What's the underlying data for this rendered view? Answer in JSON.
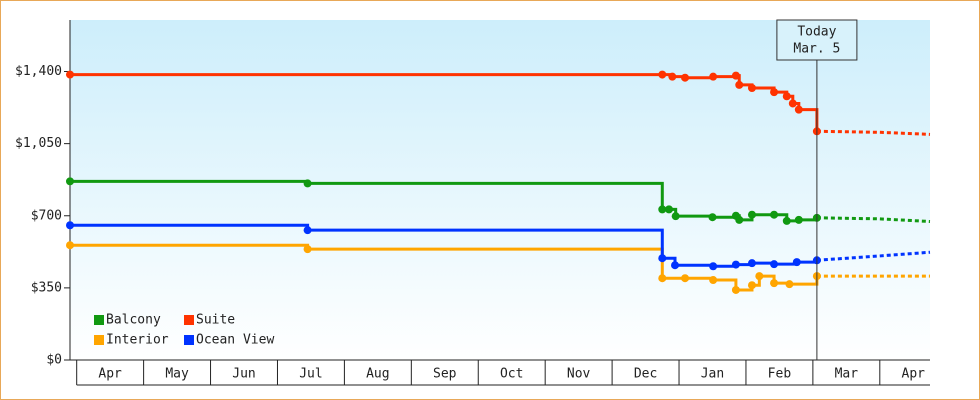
{
  "chart_data": {
    "type": "step-line",
    "xlim": [
      -0.1,
      12.75
    ],
    "xticks": [
      {
        "value": 0.5,
        "label": "Apr"
      },
      {
        "value": 1.5,
        "label": "May"
      },
      {
        "value": 2.5,
        "label": "Jun"
      },
      {
        "value": 3.5,
        "label": "Jul"
      },
      {
        "value": 4.5,
        "label": "Aug"
      },
      {
        "value": 5.5,
        "label": "Sep"
      },
      {
        "value": 6.5,
        "label": "Oct"
      },
      {
        "value": 7.5,
        "label": "Nov"
      },
      {
        "value": 8.5,
        "label": "Dec"
      },
      {
        "value": 9.5,
        "label": "Jan"
      },
      {
        "value": 10.5,
        "label": "Feb"
      },
      {
        "value": 11.5,
        "label": "Mar"
      },
      {
        "value": 12.5,
        "label": "Apr"
      }
    ],
    "ylim": [
      0,
      1650
    ],
    "yticks": [
      {
        "value": 0,
        "label": "$0"
      },
      {
        "value": 350,
        "label": "$350"
      },
      {
        "value": 700,
        "label": "$700"
      },
      {
        "value": 1050,
        "label": "$1,050"
      },
      {
        "value": 1400,
        "label": "$1,400"
      }
    ],
    "annotation": {
      "x": 11.06,
      "lines": [
        "Today",
        "Mar. 5"
      ]
    },
    "series": [
      {
        "name": "Balcony",
        "color": "#119911",
        "x": [
          -0.1,
          3.45,
          8.75,
          8.85,
          8.95,
          9.5,
          9.85,
          9.9,
          10.09,
          10.42,
          10.61,
          10.79,
          11.06
        ],
        "values": [
          867,
          857,
          731,
          731,
          698,
          693,
          700,
          680,
          705,
          705,
          675,
          680,
          690
        ],
        "forecast": {
          "x": [
            11.06,
            12.0,
            12.75
          ],
          "values": [
            690,
            685,
            672
          ]
        }
      },
      {
        "name": "Suite",
        "color": "#ff3300",
        "x": [
          -0.1,
          8.75,
          8.9,
          9.09,
          9.51,
          9.85,
          9.9,
          10.09,
          10.42,
          10.61,
          10.7,
          10.79,
          11.06
        ],
        "values": [
          1385,
          1385,
          1375,
          1370,
          1375,
          1380,
          1335,
          1320,
          1300,
          1280,
          1245,
          1215,
          1110
        ],
        "forecast": {
          "x": [
            11.06,
            12.0,
            12.75
          ],
          "values": [
            1110,
            1105,
            1095
          ]
        }
      },
      {
        "name": "Interior",
        "color": "#ffa500",
        "x": [
          -0.1,
          3.45,
          8.75,
          9.09,
          9.51,
          9.85,
          10.09,
          10.2,
          10.42,
          10.65,
          11.06
        ],
        "values": [
          557,
          538,
          397,
          397,
          388,
          340,
          363,
          407,
          373,
          368,
          407
        ],
        "forecast": {
          "x": [
            11.06,
            12.0,
            12.75
          ],
          "values": [
            407,
            407,
            407
          ]
        }
      },
      {
        "name": "Ocean View",
        "color": "#0033ff",
        "x": [
          -0.1,
          3.45,
          8.75,
          8.94,
          9.51,
          9.85,
          10.09,
          10.42,
          10.76,
          11.06
        ],
        "values": [
          654,
          630,
          494,
          460,
          455,
          463,
          470,
          465,
          475,
          484
        ],
        "forecast": {
          "x": [
            11.06,
            12.0,
            12.75
          ],
          "values": [
            484,
            505,
            523
          ]
        }
      }
    ]
  }
}
